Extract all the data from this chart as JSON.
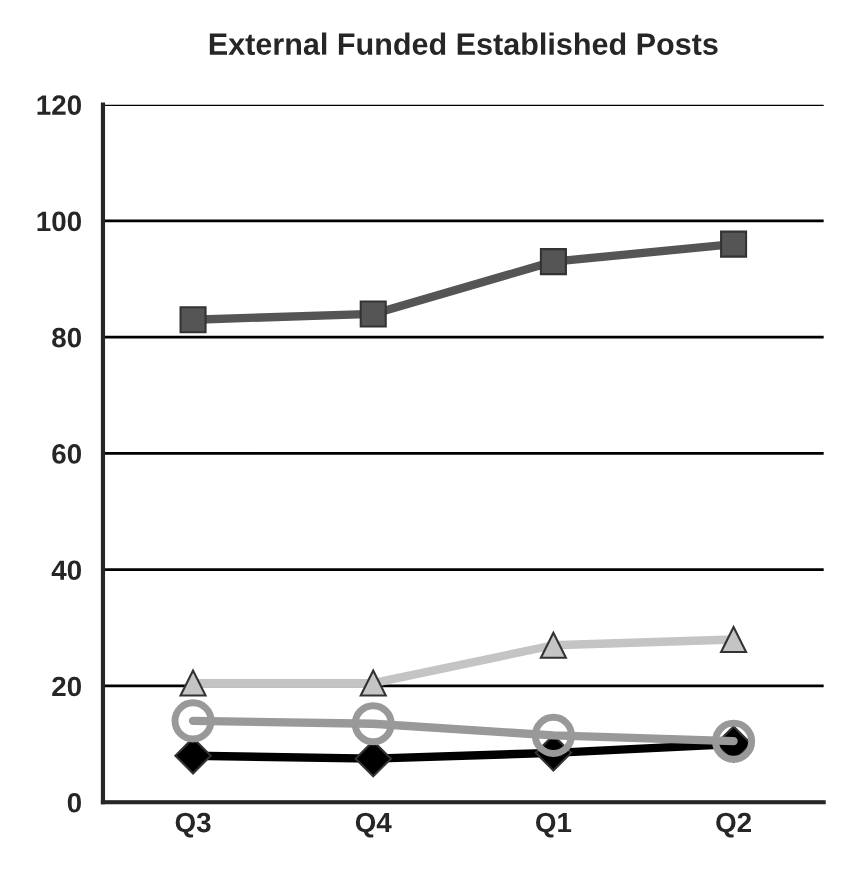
{
  "chart_data": {
    "type": "line",
    "title": "External Funded Established Posts",
    "categories": [
      "Q3",
      "Q4",
      "Q1",
      "Q2"
    ],
    "series": [
      {
        "color": "#555555",
        "marker": "square",
        "values": [
          83,
          84,
          93,
          96
        ]
      },
      {
        "color": "#c4c4c4",
        "marker": "triangle",
        "values": [
          20.5,
          20.5,
          27,
          28
        ]
      },
      {
        "color": "#999999",
        "marker": "circle",
        "values": [
          14,
          13.5,
          11.5,
          10.5
        ]
      },
      {
        "color": "#000000",
        "marker": "diamond",
        "values": [
          8,
          7.5,
          8.5,
          10
        ]
      }
    ],
    "ylim": [
      0,
      120
    ],
    "yticks": [
      0,
      20,
      40,
      60,
      80,
      100,
      120
    ],
    "grid": "y",
    "legend": false
  }
}
